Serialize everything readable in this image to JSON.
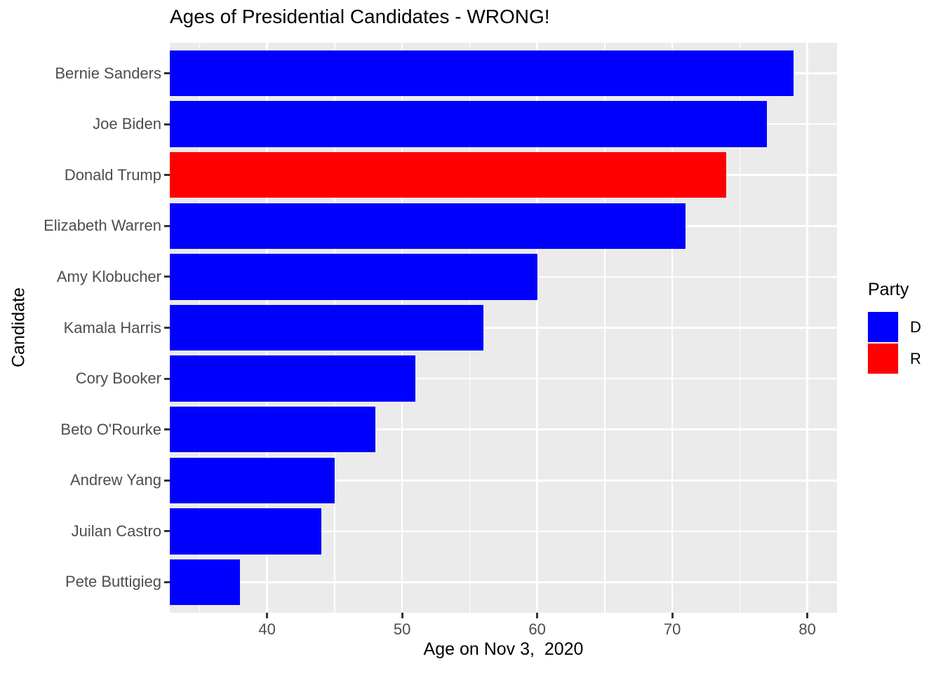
{
  "title": "Ages of Presidential Candidates - WRONG!",
  "chart_data": {
    "type": "bar",
    "orientation": "horizontal",
    "title": "Ages of Presidential Candidates - WRONG!",
    "xlabel": "Age on Nov 3,  2020",
    "ylabel": "Candidate",
    "categories": [
      "Bernie Sanders",
      "Joe Biden",
      "Donald Trump",
      "Elizabeth Warren",
      "Amy Klobucher",
      "Kamala Harris",
      "Cory Booker",
      "Beto O'Rourke",
      "Andrew Yang",
      "Juilan Castro",
      "Pete Buttigieg"
    ],
    "values": [
      79,
      77,
      74,
      71,
      60,
      56,
      51,
      48,
      45,
      44,
      38
    ],
    "series_party": [
      "D",
      "D",
      "R",
      "D",
      "D",
      "D",
      "D",
      "D",
      "D",
      "D",
      "D"
    ],
    "xlim": [
      32.8,
      82.2
    ],
    "x_major_ticks": [
      40,
      50,
      60,
      70,
      80
    ],
    "x_minor_ticks": [
      35,
      45,
      55,
      65,
      75
    ],
    "grid": true,
    "bar_fill_by_party": {
      "D": "#0000FF",
      "R": "#FF0000"
    },
    "legend": {
      "title": "Party",
      "position": "right",
      "entries": [
        {
          "label": "D",
          "color": "#0000FF"
        },
        {
          "label": "R",
          "color": "#FF0000"
        }
      ]
    }
  },
  "style": {
    "panel_background": "#EBEBEB",
    "grid_color": "#FFFFFF",
    "tick_label_color": "#4D4D4D",
    "tick_mark_color": "#333333",
    "title_color": "#000000"
  }
}
